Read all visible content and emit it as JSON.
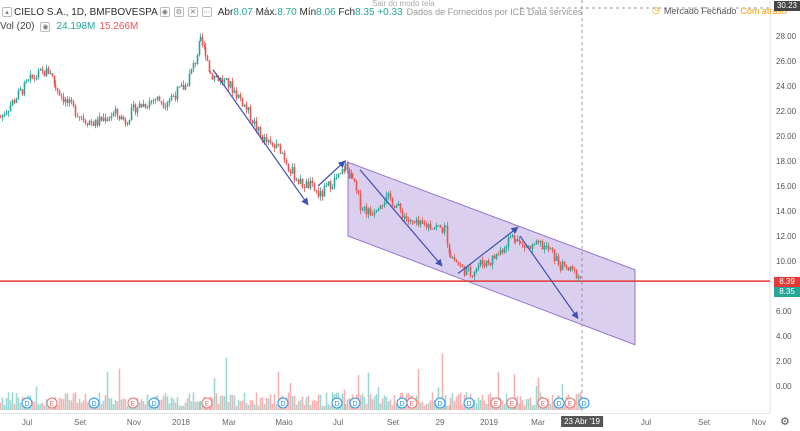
{
  "header": {
    "symbol": "CIELO S.A., 1D, BMFBOVESPA",
    "open_label": "Abr",
    "open": "8.07",
    "high_label": "Máx.",
    "high": "8.70",
    "low_label": "Mín",
    "low": "8.06",
    "close_label": "Fch",
    "close": "8.35",
    "change": "+0.33",
    "data_note": "Dados de Fornecidos por ICE Data services",
    "exit_fullscreen": "Sair do modo tela",
    "market_status": "Mercado Fechado",
    "late_label": "Com atraso"
  },
  "volume": {
    "label": "Vol (20)",
    "value1": "24.198M",
    "value2": "15.266M"
  },
  "crosshair_price": "30.23",
  "price_tags": {
    "hline": "8.39",
    "last": "8.35"
  },
  "colors": {
    "up": "#26a69a",
    "down": "#ef5350",
    "hline": "#e53935",
    "channel": "#9575cd",
    "arrow": "#3f51b5"
  },
  "chart_data": {
    "type": "candlestick",
    "y_ticks": [
      "28.00",
      "26.00",
      "24.00",
      "22.00",
      "20.00",
      "18.00",
      "16.00",
      "14.00",
      "12.00",
      "10.00",
      "6.00",
      "4.00",
      "2.00",
      "0.00"
    ],
    "ylim": [
      -1.4,
      29.6
    ],
    "x_ticks": [
      "Jul",
      "Set",
      "Nov",
      "2018",
      "Mar",
      "Maio",
      "Jul",
      "Set",
      "29",
      "2019",
      "Mar",
      "Jul",
      "Set",
      "Nov"
    ],
    "cursor_date": "23 Abr '19",
    "horizontal_line": 8.39,
    "price_path": [
      [
        0,
        21.5
      ],
      [
        10,
        22.5
      ],
      [
        20,
        23.5
      ],
      [
        30,
        24.5
      ],
      [
        40,
        25.0
      ],
      [
        50,
        25.2
      ],
      [
        55,
        24.0
      ],
      [
        65,
        22.8
      ],
      [
        75,
        22.0
      ],
      [
        85,
        21.3
      ],
      [
        95,
        21.0
      ],
      [
        105,
        21.5
      ],
      [
        115,
        21.8
      ],
      [
        125,
        21.2
      ],
      [
        135,
        22.3
      ],
      [
        145,
        22.6
      ],
      [
        155,
        23.0
      ],
      [
        165,
        22.7
      ],
      [
        175,
        23.4
      ],
      [
        185,
        24.0
      ],
      [
        195,
        26.0
      ],
      [
        200,
        27.5
      ],
      [
        205,
        26.8
      ],
      [
        210,
        25.0
      ],
      [
        220,
        24.5
      ],
      [
        230,
        24.0
      ],
      [
        240,
        23.0
      ],
      [
        250,
        21.6
      ],
      [
        260,
        20.0
      ],
      [
        270,
        19.2
      ],
      [
        280,
        19.0
      ],
      [
        290,
        17.3
      ],
      [
        300,
        16.2
      ],
      [
        310,
        16.0
      ],
      [
        320,
        15.2
      ],
      [
        330,
        16.2
      ],
      [
        340,
        16.8
      ],
      [
        345,
        17.6
      ],
      [
        352,
        16.5
      ],
      [
        360,
        14.5
      ],
      [
        370,
        13.8
      ],
      [
        380,
        14.8
      ],
      [
        390,
        15.0
      ],
      [
        400,
        14.0
      ],
      [
        410,
        13.0
      ],
      [
        420,
        12.8
      ],
      [
        430,
        12.9
      ],
      [
        440,
        12.6
      ],
      [
        445,
        12.5
      ],
      [
        450,
        10.5
      ],
      [
        460,
        9.5
      ],
      [
        470,
        9.0
      ],
      [
        480,
        9.8
      ],
      [
        490,
        10.0
      ],
      [
        500,
        10.8
      ],
      [
        510,
        11.9
      ],
      [
        515,
        12.0
      ],
      [
        520,
        11.3
      ],
      [
        530,
        11.0
      ],
      [
        540,
        11.3
      ],
      [
        550,
        10.8
      ],
      [
        560,
        9.6
      ],
      [
        570,
        9.2
      ],
      [
        578,
        8.9
      ],
      [
        582,
        8.35
      ]
    ],
    "channel_upper": [
      [
        348,
        17.9
      ],
      [
        635,
        9.3
      ]
    ],
    "channel_lower": [
      [
        348,
        12.0
      ],
      [
        635,
        3.3
      ]
    ],
    "arrows": [
      [
        [
          213,
          25.3
        ],
        [
          308,
          14.5
        ]
      ],
      [
        [
          318,
          16.0
        ],
        [
          345,
          18.0
        ]
      ],
      [
        [
          360,
          17.3
        ],
        [
          442,
          9.6
        ]
      ],
      [
        [
          458,
          9.0
        ],
        [
          518,
          12.7
        ]
      ],
      [
        [
          520,
          12.0
        ],
        [
          578,
          5.4
        ]
      ]
    ],
    "volume_markers": [
      "D",
      "E",
      "D",
      "E",
      "D",
      "E",
      "D",
      "D",
      "D",
      "D",
      "E",
      "D",
      "D",
      "E",
      "E",
      "E",
      "D",
      "E",
      "D"
    ]
  }
}
